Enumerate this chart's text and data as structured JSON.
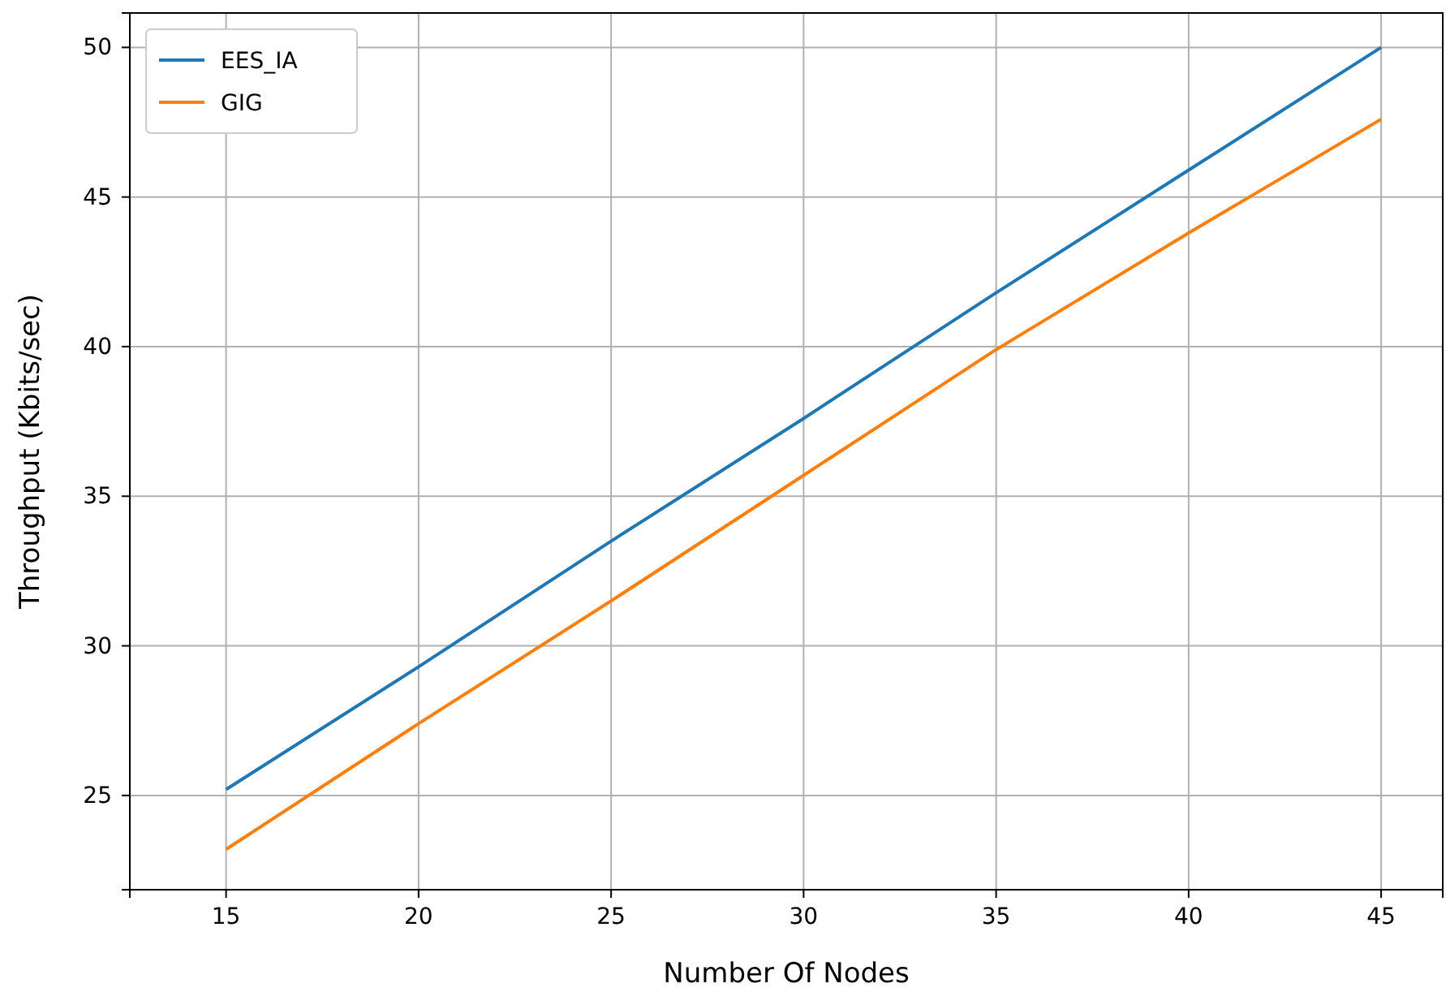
{
  "chart_data": {
    "type": "line",
    "xlabel": "Number Of Nodes",
    "ylabel": "Throughput (Kbits/sec)",
    "x": [
      15,
      20,
      25,
      30,
      35,
      40,
      45
    ],
    "series": [
      {
        "name": "EES_IA",
        "color": "#1f77b4",
        "values": [
          25.2,
          29.3,
          33.5,
          37.6,
          41.8,
          45.9,
          50.0
        ]
      },
      {
        "name": "GIG",
        "color": "#ff7f0e",
        "values": [
          23.2,
          27.4,
          31.5,
          35.7,
          39.9,
          43.8,
          47.6
        ]
      }
    ],
    "xlim": [
      12.5,
      46.6
    ],
    "xticks": [
      15,
      20,
      25,
      30,
      35,
      40,
      45
    ],
    "ylim": [
      21.85,
      51.15
    ],
    "yticks": [
      25,
      30,
      35,
      40,
      45,
      50
    ],
    "grid": true,
    "legend": "top left",
    "marker": "none",
    "line_style": "solid"
  }
}
